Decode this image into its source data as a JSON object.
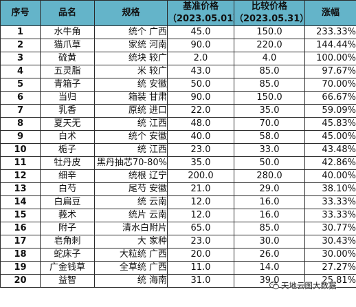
{
  "table": {
    "headers": {
      "no": "序号",
      "name": "品名",
      "spec": "规格",
      "base_price": "基准价格",
      "base_date": "（2023.05.01）",
      "comp_price": "比较价格",
      "comp_date": "（2023.05.31）",
      "change": "涨幅"
    },
    "rows": [
      {
        "no": "1",
        "name": "水牛角",
        "spec": "统个 广西",
        "base": "45.0",
        "comp": "150.0",
        "change": "233.33%"
      },
      {
        "no": "2",
        "name": "猫爪草",
        "spec": "家统 河南",
        "base": "90.0",
        "comp": "220.0",
        "change": "144.44%"
      },
      {
        "no": "3",
        "name": "硫黄",
        "spec": "统块 较广",
        "base": "2.0",
        "comp": "4.0",
        "change": "100.00%"
      },
      {
        "no": "4",
        "name": "五灵脂",
        "spec": "米 较广",
        "base": "43.0",
        "comp": "85.0",
        "change": "97.67%"
      },
      {
        "no": "5",
        "name": "青箱子",
        "spec": "统 安徽",
        "base": "50.0",
        "comp": "85.0",
        "change": "70.00%"
      },
      {
        "no": "6",
        "name": "当归",
        "spec": "箱装 甘肃",
        "base": "90.0",
        "comp": "150.0",
        "change": "66.67%"
      },
      {
        "no": "7",
        "name": "乳香",
        "spec": "原统 进口",
        "base": "22.0",
        "comp": "35.0",
        "change": "59.09%"
      },
      {
        "no": "8",
        "name": "夏天无",
        "spec": "统 江西",
        "base": "48.0",
        "comp": "70.0",
        "change": "45.83%"
      },
      {
        "no": "9",
        "name": "白术",
        "spec": "统个 安徽",
        "base": "40.0",
        "comp": "58.0",
        "change": "45.00%"
      },
      {
        "no": "10",
        "name": "栀子",
        "spec": "统 江西",
        "base": "23.0",
        "comp": "33.0",
        "change": "43.48%"
      },
      {
        "no": "11",
        "name": "牡丹皮",
        "spec": "黑丹抽芯70-80%",
        "base": "35.0",
        "comp": "50.0",
        "change": "42.86%"
      },
      {
        "no": "12",
        "name": "细辛",
        "spec": "统根 辽宁",
        "base": "200.0",
        "comp": "280.0",
        "change": "40.00%"
      },
      {
        "no": "13",
        "name": "白芍",
        "spec": "尾芍 安徽",
        "base": "21.0",
        "comp": "29.0",
        "change": "38.10%"
      },
      {
        "no": "14",
        "name": "白扁豆",
        "spec": "统 云南",
        "base": "12.0",
        "comp": "16.0",
        "change": "33.33%"
      },
      {
        "no": "15",
        "name": "莪术",
        "spec": "统片 云南",
        "base": "12.0",
        "comp": "16.0",
        "change": "33.33%"
      },
      {
        "no": "16",
        "name": "附子",
        "spec": "清水白附片",
        "base": "65.0",
        "comp": "85.0",
        "change": "30.77%"
      },
      {
        "no": "17",
        "name": "皂角刺",
        "spec": "大 家种",
        "base": "23.0",
        "comp": "30.0",
        "change": "30.43%"
      },
      {
        "no": "18",
        "name": "蛇床子",
        "spec": "大粒统 广西",
        "base": "20.0",
        "comp": "26.0",
        "change": "30.00%"
      },
      {
        "no": "19",
        "name": "广金钱草",
        "spec": "全草统 广西",
        "base": "11.0",
        "comp": "14.0",
        "change": "27.27%"
      },
      {
        "no": "20",
        "name": "益智",
        "spec": "统 海南",
        "base": "31.0",
        "comp": "39.0",
        "change": "25.81%"
      }
    ]
  },
  "watermark": {
    "icon": "wechat-icon",
    "text": "天地云图大数据"
  },
  "colors": {
    "header_bg": "#64b4c9",
    "change_text": "#e1202d",
    "border": "#2b2b2b"
  }
}
